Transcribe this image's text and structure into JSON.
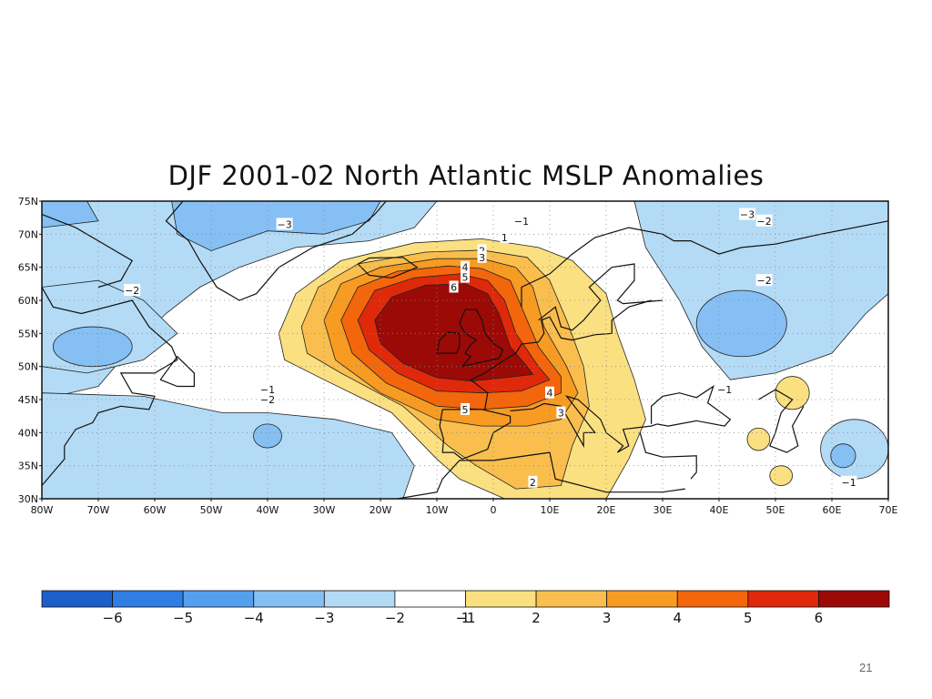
{
  "title": "DJF 2001-02 North Atlantic MSLP Anomalies",
  "page_number": "21",
  "colors": {
    "neg6": "#1c5fc9",
    "neg5": "#2f7ee3",
    "neg4": "#55a0ee",
    "neg3": "#86bff3",
    "neg2": "#b4dbf6",
    "neg1": "#ffffff",
    "pos1": "#fbe081",
    "pos2": "#f9be4e",
    "pos3": "#f79b23",
    "pos4": "#f4660b",
    "pos5": "#e0290a",
    "pos6": "#9b0a06"
  },
  "chart_data": {
    "type": "map",
    "title": "DJF 2001-02 North Atlantic MSLP Anomalies",
    "lat_range": [
      30,
      75
    ],
    "lon_range": [
      -80,
      70
    ],
    "lat_ticks": [
      "75N",
      "70N",
      "65N",
      "60N",
      "55N",
      "50N",
      "45N",
      "40N",
      "35N",
      "30N"
    ],
    "lon_ticks": [
      "80W",
      "70W",
      "60W",
      "50W",
      "40W",
      "30W",
      "20W",
      "10W",
      "0",
      "10E",
      "20E",
      "30E",
      "40E",
      "50E",
      "60E",
      "70E"
    ],
    "colorbar": {
      "labels": [
        "−6",
        "−5",
        "−4",
        "−3",
        "−2",
        "−1",
        "1",
        "2",
        "3",
        "4",
        "5",
        "6"
      ],
      "colors": [
        "#1c5fc9",
        "#2f7ee3",
        "#55a0ee",
        "#86bff3",
        "#b4dbf6",
        "#ffffff",
        "#fbe081",
        "#f9be4e",
        "#f79b23",
        "#f4660b",
        "#e0290a",
        "#9b0a06"
      ]
    },
    "contour_labels": [
      {
        "text": "−3",
        "lon": -37,
        "lat": 71.5
      },
      {
        "text": "−1",
        "lon": 5,
        "lat": 72
      },
      {
        "text": "1",
        "lon": 2,
        "lat": 69.5
      },
      {
        "text": "2",
        "lon": -2,
        "lat": 67.5
      },
      {
        "text": "3",
        "lon": -2,
        "lat": 66.5
      },
      {
        "text": "4",
        "lon": -5,
        "lat": 65
      },
      {
        "text": "5",
        "lon": -5,
        "lat": 63.5
      },
      {
        "text": "6",
        "lon": -7,
        "lat": 62
      },
      {
        "text": "−2",
        "lon": -64,
        "lat": 61.5
      },
      {
        "text": "−3",
        "lon": 45,
        "lat": 73
      },
      {
        "text": "−2",
        "lon": 48,
        "lat": 72
      },
      {
        "text": "−2",
        "lon": 48,
        "lat": 63
      },
      {
        "text": "−1",
        "lon": -40,
        "lat": 46.5
      },
      {
        "text": "−2",
        "lon": -40,
        "lat": 45
      },
      {
        "text": "4",
        "lon": 10,
        "lat": 46
      },
      {
        "text": "5",
        "lon": -5,
        "lat": 43.5
      },
      {
        "text": "3",
        "lon": 12,
        "lat": 43
      },
      {
        "text": "−1",
        "lon": 41,
        "lat": 46.5
      },
      {
        "text": "2",
        "lon": 7,
        "lat": 32.5
      },
      {
        "text": "−1",
        "lon": 63,
        "lat": 32.5
      }
    ]
  }
}
